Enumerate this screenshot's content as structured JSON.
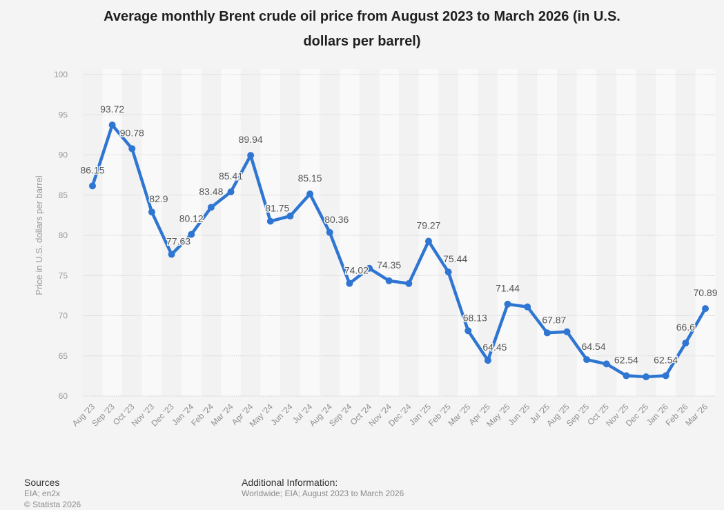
{
  "chart_data": {
    "type": "line",
    "title": "Average monthly Brent crude oil price from August 2023 to March 2026 (in U.S. dollars per barrel)",
    "title_lines": [
      "Average monthly Brent crude oil price from August 2023 to March 2026 (in U.S.",
      "dollars per barrel)"
    ],
    "xlabel": "",
    "ylabel": "Price in U.S. dollars per barrel",
    "ylim": [
      60,
      100
    ],
    "yticks": [
      60,
      65,
      70,
      75,
      80,
      85,
      90,
      95,
      100
    ],
    "grid": true,
    "legend": "none",
    "categories": [
      "Aug '23",
      "Sep '23",
      "Oct '23",
      "Nov '23",
      "Dec '23",
      "Jan '24",
      "Feb '24",
      "Mar '24",
      "Apr '24",
      "May '24",
      "Jun '24",
      "Jul '24",
      "Aug '24",
      "Sep '24",
      "Oct '24",
      "Nov '24",
      "Dec '24",
      "Jan '25",
      "Feb '25",
      "Mar '25",
      "Apr '25",
      "May '25",
      "Jun '25",
      "Jul '25",
      "Aug '25",
      "Sep '25",
      "Oct '25",
      "Nov '25",
      "Dec '25",
      "Jan '26",
      "Feb '26",
      "Mar '26"
    ],
    "series": [
      {
        "name": "Brent crude oil price",
        "color": "#2f76d2",
        "values": [
          86.15,
          93.72,
          90.78,
          82.9,
          77.63,
          80.12,
          83.48,
          85.41,
          89.94,
          81.75,
          82.4,
          85.15,
          80.36,
          74.02,
          75.9,
          74.35,
          74.0,
          79.27,
          75.44,
          68.13,
          64.45,
          71.44,
          71.1,
          67.87,
          68.0,
          64.54,
          64.0,
          62.54,
          62.4,
          62.54,
          66.6,
          70.89
        ],
        "labels": [
          "86.15",
          "93.72",
          "90.78",
          "82.9",
          "77.63",
          "80.12",
          "83.48",
          "85.41",
          "89.94",
          "81.75",
          "",
          "85.15",
          "80.36",
          "74.02",
          "",
          "74.35",
          "",
          "79.27",
          "75.44",
          "68.13",
          "64.45",
          "71.44",
          "",
          "67.87",
          "",
          "64.54",
          "",
          "62.54",
          "",
          "62.54",
          "66.6",
          "70.89"
        ]
      }
    ]
  },
  "footer": {
    "sources_heading": "Sources",
    "sources_text": "EIA; en2x",
    "copyright": "© Statista 2026",
    "additional_heading": "Additional Information:",
    "additional_text": "Worldwide; EIA; August 2023 to March 2026"
  }
}
